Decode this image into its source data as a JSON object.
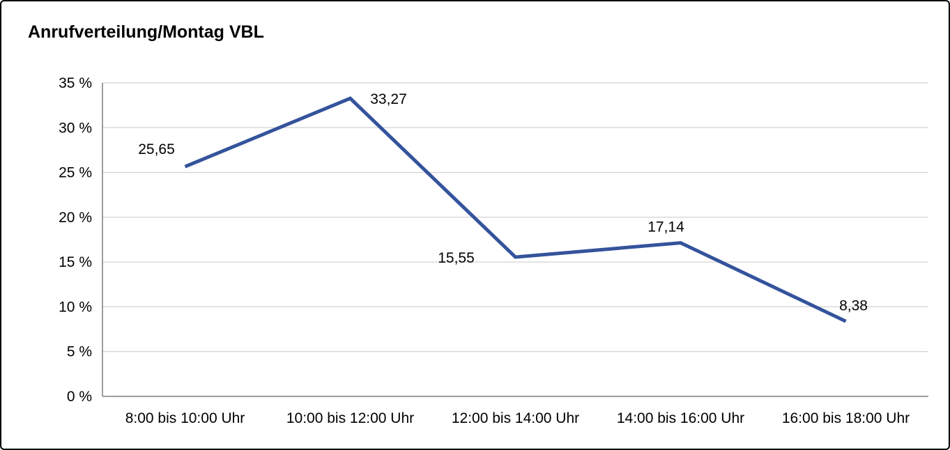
{
  "title": "Anrufverteilung/Montag VBL",
  "chart_data": {
    "type": "line",
    "title": "Anrufverteilung/Montag VBL",
    "categories": [
      "8:00 bis 10:00 Uhr",
      "10:00 bis 12:00 Uhr",
      "12:00 bis 14:00 Uhr",
      "14:00 bis 16:00 Uhr",
      "16:00 bis 18:00 Uhr"
    ],
    "values": [
      25.65,
      33.27,
      15.55,
      17.14,
      8.38
    ],
    "point_labels": [
      "25,65",
      "33,27",
      "15,55",
      "17,14",
      "8,38"
    ],
    "xlabel": "",
    "ylabel": "",
    "ylim": [
      0,
      35
    ],
    "ytick_step": 5,
    "ytick_labels": [
      "0 %",
      "5 %",
      "10 %",
      "15 %",
      "20 %",
      "25 %",
      "30 %",
      "35 %"
    ],
    "grid": true,
    "legend": "none",
    "line_color": "#34539c",
    "grid_color": "#c8c8c8",
    "axis_color": "#7f7f7f",
    "text_color": "#000000"
  }
}
